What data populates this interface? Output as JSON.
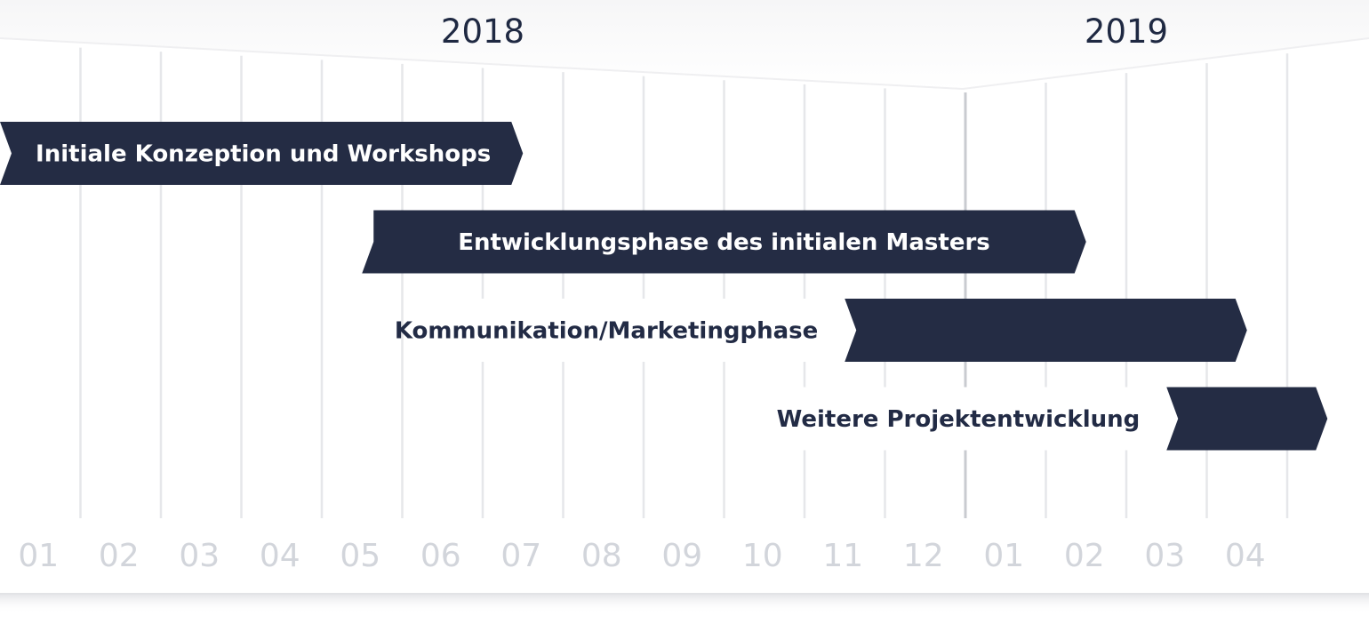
{
  "chart_data": {
    "type": "gantt",
    "years": [
      "2018",
      "2019"
    ],
    "months": [
      "01",
      "02",
      "03",
      "04",
      "05",
      "06",
      "07",
      "08",
      "09",
      "10",
      "11",
      "12",
      "01",
      "02",
      "03",
      "04"
    ],
    "tasks": [
      {
        "name": "Initiale Konzeption und Workshops",
        "start": 0.0,
        "end": 6.5
      },
      {
        "name": "Entwicklungsphase des initialen Masters",
        "start": 4.5,
        "end": 13.5
      },
      {
        "name": "Kommunikation/Marketingphase",
        "start": 10.5,
        "end": 15.5
      },
      {
        "name": "Weitere Projektentwicklung",
        "start": 14.5,
        "end": 16.5
      }
    ],
    "colors": {
      "bar": "#242c44",
      "grid": "#e6e7ea",
      "year_divider": "#c9cbd0",
      "month_text": "#d2d5db",
      "year_text": "#1f2942"
    }
  }
}
